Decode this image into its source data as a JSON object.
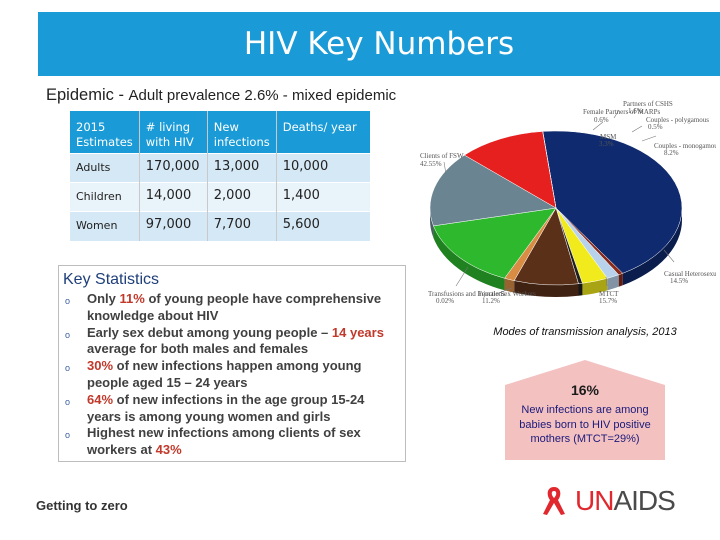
{
  "title": "HIV Key Numbers",
  "subtitle": {
    "lead": "Epidemic - ",
    "rest": "Adult prevalence 2.6% - mixed epidemic"
  },
  "table": {
    "headers": [
      "2015 Estimates",
      "# living with HIV",
      "New infections",
      "Deaths/ year"
    ],
    "rows": [
      [
        "Adults",
        "170,000",
        "13,000",
        "10,000"
      ],
      [
        "Children",
        "14,000",
        "2,000",
        "1,400"
      ],
      [
        "Women",
        "97,000",
        "7,700",
        "5,600"
      ]
    ]
  },
  "key_statistics": {
    "heading": "Key Statistics",
    "items": [
      {
        "pre": "Only ",
        "hl": "11%",
        "post": " of young people have comprehensive knowledge about HIV"
      },
      {
        "pre": "Early sex debut among young people – ",
        "hl": "14 years",
        "post": " average for both males and females"
      },
      {
        "pre": "",
        "hl": "30%",
        "post": " of new infections happen among young people aged 15 – 24 years"
      },
      {
        "pre": "",
        "hl": "64%",
        "post": " of new infections in the age group 15-24 years is among young women and girls"
      },
      {
        "pre": "Highest new infections among clients of sex workers at ",
        "hl": "43%",
        "post": ""
      }
    ]
  },
  "chart_data": {
    "type": "pie",
    "title": "Modes of transmission analysis, 2013",
    "slices": [
      {
        "label": "Clients of FSW",
        "value": 42.55,
        "display": "42.55%",
        "color": "#0f2a6e"
      },
      {
        "label": "Female Partners of MARPs",
        "value": 0.6,
        "display": "0.6%",
        "color": "#8a2a1a"
      },
      {
        "label": "Partners of CSHS",
        "value": 1.6,
        "display": "1.6%",
        "color": "#b8d2ec"
      },
      {
        "label": "MSM",
        "value": 3.3,
        "display": "3.3%",
        "color": "#f1ea1c"
      },
      {
        "label": "Couples - polygamous",
        "value": 0.5,
        "display": "0.5%",
        "color": "#1f1f1f"
      },
      {
        "label": "Couples - monogamous",
        "value": 8.2,
        "display": "8.2%",
        "color": "#5a3018"
      },
      {
        "label": "",
        "value": 1.3,
        "display": "",
        "color": "#d98d44"
      },
      {
        "label": "Casual Heterosexuals",
        "value": 14.5,
        "display": "14.5%",
        "color": "#2eb82e"
      },
      {
        "label": "MTCT",
        "value": 15.7,
        "display": "15.7%",
        "color": "#6a8591"
      },
      {
        "label": "Female Sex Workers",
        "value": 11.2,
        "display": "11.2%",
        "color": "#e61f1f"
      },
      {
        "label": "Transfusions and Injections",
        "value": 0.02,
        "display": "0.02%",
        "color": "#222222"
      }
    ]
  },
  "callout": {
    "percent": "16%",
    "text": "New infections are among babies born to HIV positive mothers (MTCT=29%)"
  },
  "footer": "Getting to zero",
  "logo": {
    "prefix": "UN",
    "suffix": "AIDS"
  },
  "colors": {
    "title_bar": "#1a9ad6",
    "highlight": "#c0392b",
    "callout_fill": "#f4c1c1"
  }
}
